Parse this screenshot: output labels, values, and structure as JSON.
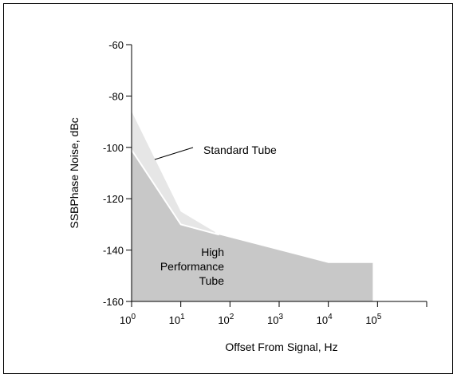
{
  "chart_data": {
    "type": "area",
    "xscale": "log",
    "xlabel": "Offset From Signal, Hz",
    "ylabel": "SSBPhase Noise, dBc",
    "xlim": [
      1,
      1000000
    ],
    "ylim": [
      -160,
      -60
    ],
    "xticks": [
      {
        "value": 1,
        "base": "10",
        "exp": "0"
      },
      {
        "value": 10,
        "base": "10",
        "exp": "1"
      },
      {
        "value": 100,
        "base": "10",
        "exp": "2"
      },
      {
        "value": 1000,
        "base": "10",
        "exp": "3"
      },
      {
        "value": 10000,
        "base": "10",
        "exp": "4"
      },
      {
        "value": 100000,
        "base": "10",
        "exp": "5"
      }
    ],
    "yticks": [
      -60,
      -80,
      -100,
      -120,
      -140,
      -160
    ],
    "ytick_labels": [
      "-60",
      "-80",
      "-100",
      "-120",
      "-140",
      "-160"
    ],
    "series": [
      {
        "name": "Standard Tube",
        "color": "#e6e6e6",
        "x": [
          1,
          10,
          50
        ],
        "y": [
          -86,
          -125,
          -133
        ]
      },
      {
        "name": "High Performance Tube",
        "color": "#c8c8c8",
        "x": [
          1,
          10,
          60,
          10000,
          80000
        ],
        "y": [
          -101,
          -130,
          -134,
          -145,
          -145
        ]
      }
    ],
    "annotations": {
      "standard": "Standard Tube",
      "high_lines": [
        "High",
        "Performance",
        "Tube"
      ]
    },
    "grid": false,
    "legend": "none"
  }
}
